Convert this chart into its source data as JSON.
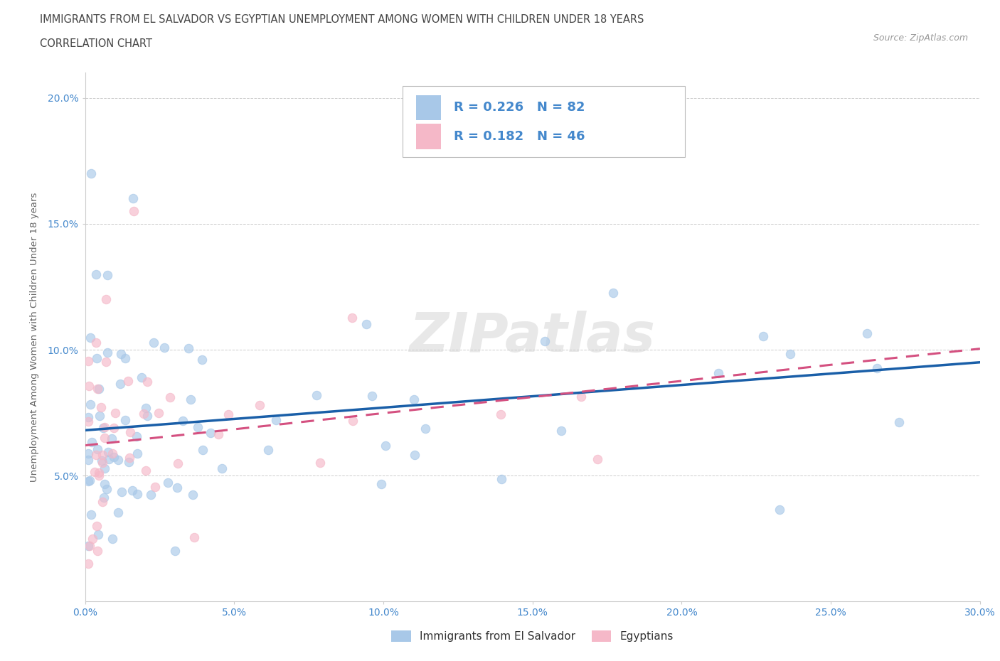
{
  "title_line1": "IMMIGRANTS FROM EL SALVADOR VS EGYPTIAN UNEMPLOYMENT AMONG WOMEN WITH CHILDREN UNDER 18 YEARS",
  "title_line2": "CORRELATION CHART",
  "source_text": "Source: ZipAtlas.com",
  "ylabel": "Unemployment Among Women with Children Under 18 years",
  "xlim": [
    0.0,
    0.3
  ],
  "ylim": [
    0.0,
    0.21
  ],
  "xticks": [
    0.0,
    0.05,
    0.1,
    0.15,
    0.2,
    0.25,
    0.3
  ],
  "yticks": [
    0.05,
    0.1,
    0.15,
    0.2
  ],
  "ytick_labels": [
    "5.0%",
    "10.0%",
    "15.0%",
    "20.0%"
  ],
  "xtick_labels": [
    "0.0%",
    "5.0%",
    "10.0%",
    "15.0%",
    "20.0%",
    "25.0%",
    "30.0%"
  ],
  "color_blue": "#a8c8e8",
  "color_pink": "#f5b8c8",
  "line_blue": "#1a5fa8",
  "line_pink": "#d45080",
  "R_blue": 0.226,
  "N_blue": 82,
  "R_pink": 0.182,
  "N_pink": 46,
  "legend_label_blue": "Immigrants from El Salvador",
  "legend_label_pink": "Egyptians",
  "watermark": "ZIPatlas",
  "tick_color": "#4488cc",
  "blue_intercept": 0.068,
  "blue_slope": 0.09,
  "pink_intercept": 0.062,
  "pink_slope": 0.128
}
